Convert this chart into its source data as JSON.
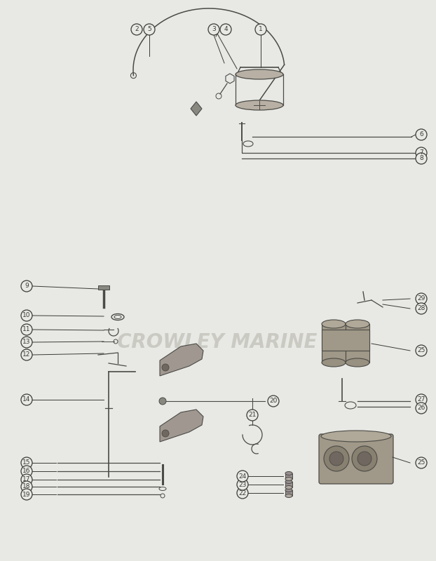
{
  "bg_color": "#e8e8e4",
  "line_color": "#4a4a46",
  "text_color": "#3a3a36",
  "watermark": "CROWLEY MARINE",
  "watermark_color": "#c5c5be",
  "figsize": [
    6.22,
    8.0
  ],
  "dpi": 100
}
